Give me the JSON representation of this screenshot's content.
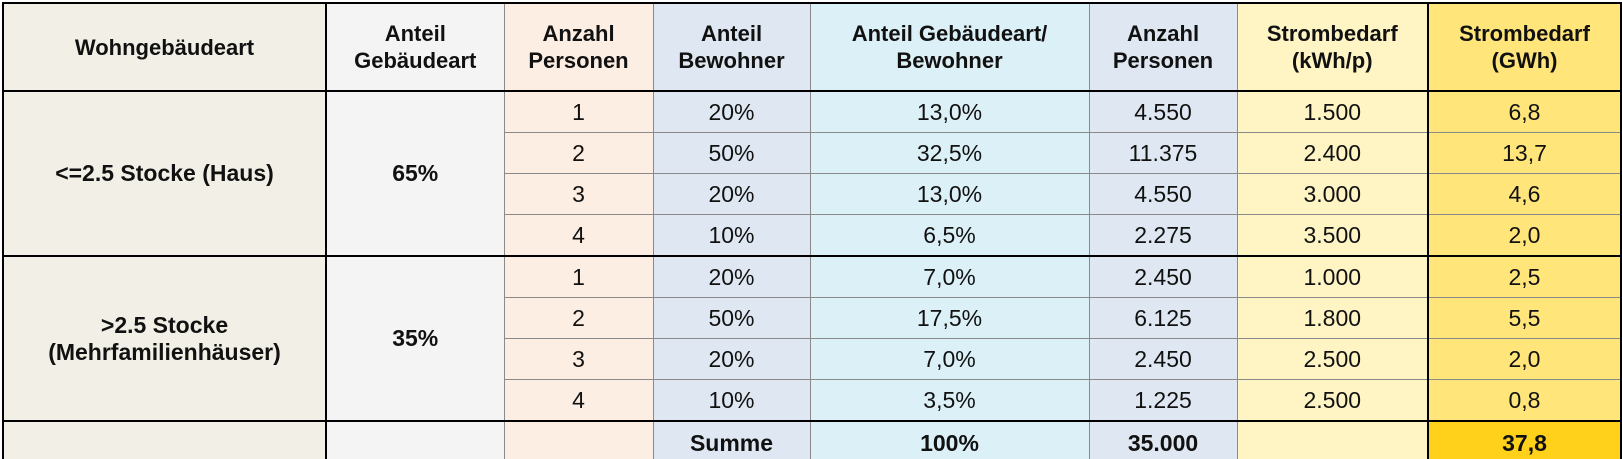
{
  "header": [
    [
      "Wohngebäudeart"
    ],
    [
      "Anteil",
      "Gebäudeart"
    ],
    [
      "Anzahl",
      "Personen"
    ],
    [
      "Anteil",
      "Bewohner"
    ],
    [
      "Anteil Gebäudeart/",
      "Bewohner"
    ],
    [
      "Anzahl",
      "Personen"
    ],
    [
      "Strombedarf",
      "(kWh/p)"
    ],
    [
      "Strombedarf",
      "(GWh)"
    ]
  ],
  "groups": [
    {
      "label": [
        "<=2.5 Stocke (Haus)"
      ],
      "share": "65%",
      "rows": [
        [
          "1",
          "20%",
          "13,0%",
          "4.550",
          "1.500",
          "6,8"
        ],
        [
          "2",
          "50%",
          "32,5%",
          "11.375",
          "2.400",
          "13,7"
        ],
        [
          "3",
          "20%",
          "13,0%",
          "4.550",
          "3.000",
          "4,6"
        ],
        [
          "4",
          "10%",
          "6,5%",
          "2.275",
          "3.500",
          "2,0"
        ]
      ]
    },
    {
      "label": [
        ">2.5 Stocke",
        "(Mehrfamilienhäuser)"
      ],
      "share": "35%",
      "rows": [
        [
          "1",
          "20%",
          "7,0%",
          "2.450",
          "1.000",
          "2,5"
        ],
        [
          "2",
          "50%",
          "17,5%",
          "6.125",
          "1.800",
          "5,5"
        ],
        [
          "3",
          "20%",
          "7,0%",
          "2.450",
          "2.500",
          "2,0"
        ],
        [
          "4",
          "10%",
          "3,5%",
          "1.225",
          "2.500",
          "0,8"
        ]
      ]
    }
  ],
  "summary": {
    "label": "Summe",
    "share": "100%",
    "persons": "35.000",
    "total": "37,8"
  }
}
